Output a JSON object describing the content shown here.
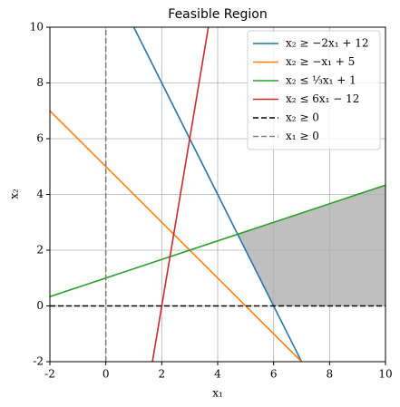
{
  "chart_data": {
    "type": "line",
    "title": "Feasible Region",
    "x_label": "x₁",
    "y_label": "x₂",
    "xlim": [
      -2,
      10
    ],
    "ylim": [
      -2,
      10
    ],
    "xticks": [
      -2,
      0,
      2,
      4,
      6,
      8,
      10
    ],
    "yticks": [
      -2,
      0,
      2,
      4,
      6,
      8,
      10
    ],
    "grid": true,
    "legend": "upper right",
    "region": {
      "x": [
        4.714,
        10,
        10,
        6
      ],
      "values": [
        2.571,
        4.333,
        0,
        0
      ],
      "color": "#bfbfbf"
    },
    "series": [
      {
        "name": "x₂ ≥ −2x₁ + 12",
        "color": "#1f77b4",
        "linestyle": "solid",
        "x": [
          1,
          7
        ],
        "values": [
          10,
          -2
        ]
      },
      {
        "name": "x₂ ≥ −x₁ + 5",
        "color": "#ff7f0e",
        "linestyle": "solid",
        "x": [
          -2,
          7
        ],
        "values": [
          7,
          -2
        ]
      },
      {
        "name": "x₂ ≤ ⅓x₁ + 1",
        "color": "#2ca02c",
        "linestyle": "solid",
        "x": [
          -2,
          10
        ],
        "values": [
          0.333,
          4.333
        ]
      },
      {
        "name": "x₂ ≤ 6x₁ − 12",
        "color": "#d62728",
        "linestyle": "solid",
        "x": [
          1.667,
          3.667
        ],
        "values": [
          -2,
          10
        ]
      },
      {
        "name": "x₂ ≥ 0",
        "color": "#000000",
        "linestyle": "dashed",
        "x": [
          -2,
          10
        ],
        "values": [
          0,
          0
        ]
      },
      {
        "name": "x₁ ≥ 0",
        "color": "#808080",
        "linestyle": "dashed",
        "x": [
          0,
          0
        ],
        "values": [
          -2,
          10
        ]
      }
    ]
  }
}
